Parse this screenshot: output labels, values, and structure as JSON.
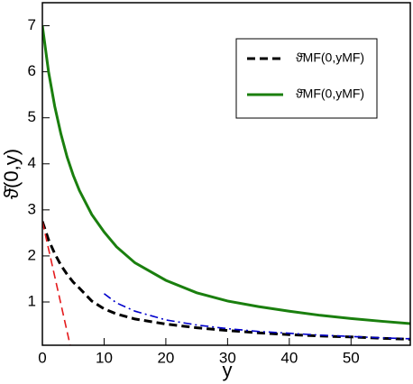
{
  "chart_data": {
    "type": "line",
    "xlabel": "y",
    "ylabel": "ϑ̄(0,y)",
    "xlim": [
      0,
      59.6
    ],
    "ylim": [
      0.06,
      7.5
    ],
    "xticks": [
      0,
      10,
      20,
      30,
      40,
      50
    ],
    "yticks": [
      1,
      2,
      3,
      4,
      5,
      6,
      7
    ],
    "legend": "upper right",
    "series": [
      {
        "name": "ϑ̄MF(0,yMF)",
        "color": "#000000",
        "linestyle": "dashed",
        "x": [
          0,
          1,
          2,
          3,
          4,
          5,
          6,
          8,
          10,
          12,
          15,
          20,
          25,
          30,
          35,
          40,
          45,
          50,
          55,
          59.6
        ],
        "values": [
          2.75,
          2.35,
          2.05,
          1.8,
          1.6,
          1.43,
          1.3,
          1.02,
          0.85,
          0.74,
          0.63,
          0.52,
          0.44,
          0.38,
          0.33,
          0.29,
          0.26,
          0.24,
          0.21,
          0.19
        ]
      },
      {
        "name": "ϑ̄MF(0,yMF)",
        "color": "#1a7f0e",
        "linestyle": "solid",
        "x": [
          0,
          1,
          2,
          3,
          4,
          5,
          6,
          8,
          10,
          12,
          15,
          20,
          25,
          30,
          35,
          40,
          45,
          50,
          55,
          59.6
        ],
        "values": [
          7.0,
          6.0,
          5.25,
          4.65,
          4.15,
          3.75,
          3.42,
          2.9,
          2.52,
          2.2,
          1.85,
          1.47,
          1.2,
          1.02,
          0.9,
          0.8,
          0.71,
          0.64,
          0.58,
          0.53
        ]
      },
      {
        "color": "#e41a1c",
        "linestyle": "dashed",
        "x": [
          0,
          4.5
        ],
        "values": [
          2.75,
          0.06
        ]
      },
      {
        "color": "#0000cc",
        "linestyle": "dashdot",
        "x": [
          10,
          12,
          15,
          20,
          25,
          30,
          35,
          40,
          45,
          50,
          55,
          59.6
        ],
        "values": [
          1.18,
          0.98,
          0.8,
          0.61,
          0.5,
          0.42,
          0.36,
          0.32,
          0.28,
          0.25,
          0.22,
          0.2
        ]
      }
    ]
  }
}
